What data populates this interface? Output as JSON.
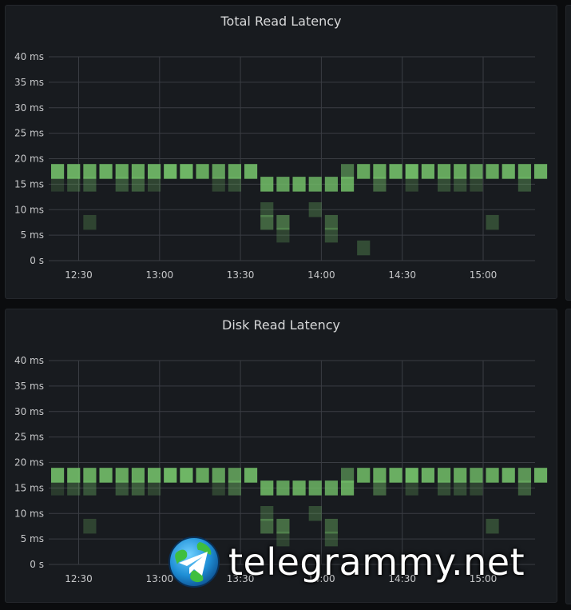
{
  "panels": [
    {
      "title": "Total Read Latency"
    },
    {
      "title": "Disk Read Latency"
    }
  ],
  "watermark": {
    "text": "telegrammy.net",
    "logo": "telegram-globe-logo"
  },
  "colors": {
    "bucket": "#73bf69",
    "grid": "#3a3d43",
    "panel_bg": "#181b1f"
  },
  "chart_data": [
    {
      "type": "heatmap",
      "title": "Total Read Latency",
      "x_ticks": [
        "12:30",
        "13:00",
        "13:30",
        "14:00",
        "14:30",
        "15:00"
      ],
      "y_ticks": [
        "0 s",
        "5 ms",
        "10 ms",
        "15 ms",
        "20 ms",
        "25 ms",
        "30 ms",
        "35 ms",
        "40 ms"
      ],
      "grid": true,
      "columns": 31,
      "bucket_centers_ms": [
        2.5,
        5,
        7.5,
        10,
        12.5,
        15,
        17.5
      ],
      "cells": [
        [
          0,
          17.5,
          0.9
        ],
        [
          0,
          15,
          0.2
        ],
        [
          1,
          17.5,
          0.9
        ],
        [
          1,
          15,
          0.3
        ],
        [
          2,
          17.5,
          0.85
        ],
        [
          2,
          15,
          0.35
        ],
        [
          2,
          7.5,
          0.25
        ],
        [
          3,
          17.5,
          0.9
        ],
        [
          4,
          17.5,
          0.85
        ],
        [
          4,
          15,
          0.35
        ],
        [
          5,
          17.5,
          0.85
        ],
        [
          5,
          15,
          0.4
        ],
        [
          6,
          17.5,
          0.9
        ],
        [
          6,
          15,
          0.25
        ],
        [
          7,
          17.5,
          0.95
        ],
        [
          8,
          17.5,
          0.95
        ],
        [
          9,
          17.5,
          0.85
        ],
        [
          10,
          17.5,
          0.8
        ],
        [
          10,
          15,
          0.25
        ],
        [
          11,
          17.5,
          0.85
        ],
        [
          11,
          15,
          0.3
        ],
        [
          12,
          17.5,
          0.9
        ],
        [
          12,
          15,
          0.02
        ],
        [
          12,
          12.5,
          0.02
        ],
        [
          12,
          10,
          0.02
        ],
        [
          12,
          7.5,
          0.02
        ],
        [
          12,
          5,
          0.02
        ],
        [
          12,
          2.5,
          0.02
        ],
        [
          12,
          0,
          0.02
        ],
        [
          12,
          20,
          0.02
        ],
        [
          13,
          15,
          0.85
        ],
        [
          13,
          10,
          0.3
        ],
        [
          13,
          7.5,
          0.45
        ],
        [
          14,
          15,
          0.8
        ],
        [
          14,
          7.5,
          0.5
        ],
        [
          14,
          5,
          0.25
        ],
        [
          15,
          15,
          0.85
        ],
        [
          16,
          15,
          0.8
        ],
        [
          16,
          10,
          0.3
        ],
        [
          17,
          15,
          0.8
        ],
        [
          17,
          7.5,
          0.4
        ],
        [
          17,
          5,
          0.3
        ],
        [
          18,
          15,
          0.85
        ],
        [
          18,
          17.5,
          0.55
        ],
        [
          19,
          17.5,
          0.85
        ],
        [
          19,
          2.5,
          0.3
        ],
        [
          20,
          17.5,
          0.85
        ],
        [
          20,
          15,
          0.45
        ],
        [
          21,
          17.5,
          0.9
        ],
        [
          22,
          17.5,
          0.95
        ],
        [
          22,
          15,
          0.25
        ],
        [
          23,
          17.5,
          0.9
        ],
        [
          24,
          17.5,
          0.85
        ],
        [
          24,
          15,
          0.3
        ],
        [
          25,
          17.5,
          0.85
        ],
        [
          25,
          15,
          0.3
        ],
        [
          26,
          17.5,
          0.8
        ],
        [
          26,
          15,
          0.25
        ],
        [
          27,
          17.5,
          0.85
        ],
        [
          27,
          7.5,
          0.3
        ],
        [
          28,
          17.5,
          0.9
        ],
        [
          29,
          17.5,
          0.85
        ],
        [
          29,
          15,
          0.35
        ],
        [
          30,
          17.5,
          0.9
        ]
      ]
    },
    {
      "type": "heatmap",
      "title": "Disk Read Latency",
      "x_ticks": [
        "12:30",
        "13:00",
        "13:30",
        "14:00",
        "14:30",
        "15:00"
      ],
      "y_ticks": [
        "0 s",
        "5 ms",
        "10 ms",
        "15 ms",
        "20 ms",
        "25 ms",
        "30 ms",
        "35 ms",
        "40 ms"
      ],
      "grid": true,
      "columns": 31,
      "bucket_centers_ms": [
        2.5,
        5,
        7.5,
        10,
        12.5,
        15,
        17.5
      ],
      "cells": [
        [
          0,
          17.5,
          0.9
        ],
        [
          0,
          15,
          0.2
        ],
        [
          1,
          17.5,
          0.9
        ],
        [
          1,
          15,
          0.3
        ],
        [
          2,
          17.5,
          0.85
        ],
        [
          2,
          15,
          0.35
        ],
        [
          2,
          7.5,
          0.25
        ],
        [
          3,
          17.5,
          0.9
        ],
        [
          4,
          17.5,
          0.85
        ],
        [
          4,
          15,
          0.35
        ],
        [
          5,
          17.5,
          0.85
        ],
        [
          5,
          15,
          0.4
        ],
        [
          6,
          17.5,
          0.9
        ],
        [
          6,
          15,
          0.25
        ],
        [
          7,
          17.5,
          0.95
        ],
        [
          8,
          17.5,
          0.95
        ],
        [
          9,
          17.5,
          0.85
        ],
        [
          10,
          17.5,
          0.8
        ],
        [
          10,
          15,
          0.25
        ],
        [
          11,
          17.5,
          0.75
        ],
        [
          11,
          15,
          0.45
        ],
        [
          12,
          17.5,
          0.9
        ],
        [
          13,
          15,
          0.85
        ],
        [
          13,
          10,
          0.3
        ],
        [
          13,
          7.5,
          0.45
        ],
        [
          14,
          15,
          0.8
        ],
        [
          14,
          7.5,
          0.5
        ],
        [
          14,
          5,
          0.25
        ],
        [
          15,
          15,
          0.85
        ],
        [
          16,
          15,
          0.8
        ],
        [
          16,
          10,
          0.3
        ],
        [
          17,
          15,
          0.8
        ],
        [
          17,
          7.5,
          0.4
        ],
        [
          17,
          5,
          0.3
        ],
        [
          18,
          15,
          0.85
        ],
        [
          18,
          17.5,
          0.55
        ],
        [
          19,
          17.5,
          0.85
        ],
        [
          20,
          17.5,
          0.85
        ],
        [
          20,
          15,
          0.45
        ],
        [
          21,
          17.5,
          0.9
        ],
        [
          22,
          17.5,
          0.95
        ],
        [
          22,
          15,
          0.25
        ],
        [
          23,
          17.5,
          0.9
        ],
        [
          24,
          17.5,
          0.85
        ],
        [
          24,
          15,
          0.3
        ],
        [
          25,
          17.5,
          0.85
        ],
        [
          25,
          15,
          0.3
        ],
        [
          26,
          17.5,
          0.8
        ],
        [
          26,
          15,
          0.25
        ],
        [
          27,
          17.5,
          0.85
        ],
        [
          27,
          7.5,
          0.3
        ],
        [
          28,
          17.5,
          0.9
        ],
        [
          29,
          17.5,
          0.75
        ],
        [
          29,
          15,
          0.4
        ],
        [
          30,
          17.5,
          0.9
        ]
      ]
    }
  ]
}
